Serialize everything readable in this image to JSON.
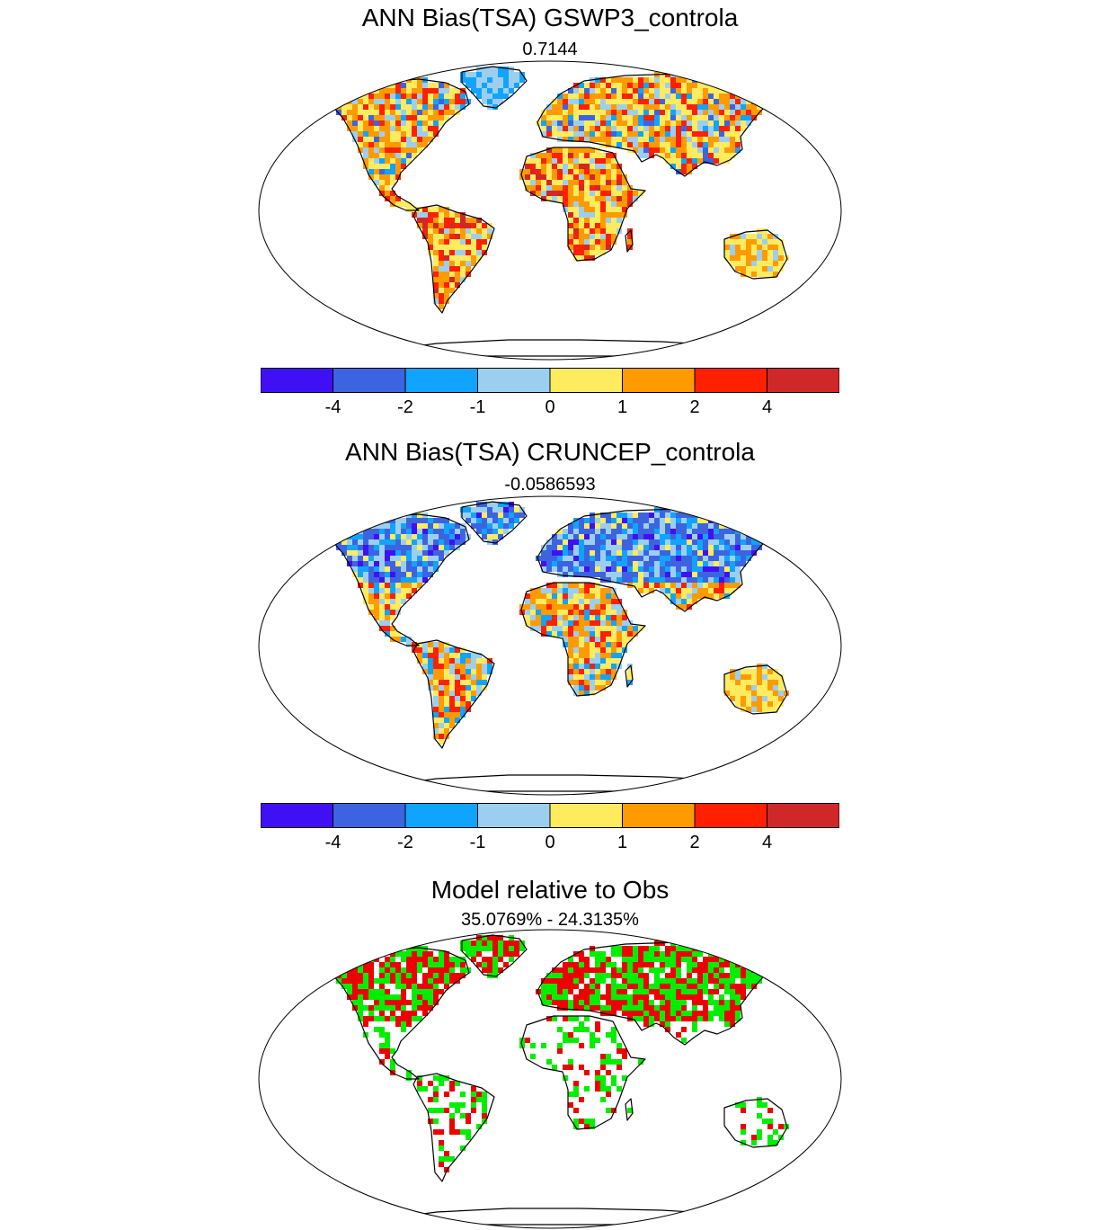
{
  "panels": [
    {
      "title": "ANN Bias(TSA) GSWP3_controla",
      "subtitle": "0.7144",
      "scheme": "bias1"
    },
    {
      "title": "ANN Bias(TSA) CRUNCEP_controla",
      "subtitle": "-0.0586593",
      "scheme": "bias2"
    },
    {
      "title": "Model relative to Obs",
      "subtitle": "35.0769% - 24.3135%",
      "scheme": "relative"
    }
  ],
  "colorbar": {
    "colors": [
      "#4010f5",
      "#3c64e0",
      "#10a4ff",
      "#9ccfef",
      "#ffeb5e",
      "#ff9b00",
      "#ff2000",
      "#d02828"
    ],
    "labels": [
      "-4",
      "-2",
      "-1",
      "0",
      "1",
      "2",
      "4"
    ]
  },
  "relative_colors": {
    "better": "#00ee00",
    "worse": "#ee0000"
  }
}
